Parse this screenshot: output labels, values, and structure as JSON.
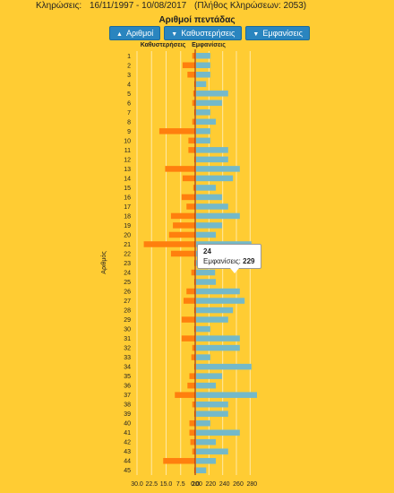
{
  "header": {
    "label": "Κληρώσεις:",
    "range": "16/11/1997 - 10/08/2017",
    "count_text": "(Πλήθος Κληρώσεων: 2053)"
  },
  "buttons": [
    {
      "label": "Αριθμοί",
      "arrow": "▲"
    },
    {
      "label": "Καθυστερήσεις",
      "arrow": "▼"
    },
    {
      "label": "Εμφανίσεις",
      "arrow": "▼"
    }
  ],
  "tooltip": {
    "number": "24",
    "label": "Εμφανίσεις:",
    "value": "229"
  },
  "colors": {
    "delay": "#FF7F0E",
    "appearances": "#74B9C9",
    "axis": "#8B1A1A",
    "grid": "#FFE9A6"
  },
  "chart_data": {
    "type": "bar",
    "title": "Αριθμοί πεντάδας",
    "ylabel": "Αριθμός",
    "series": [
      {
        "name": "Καθυστερήσεις",
        "values": [
          1.5,
          6.5,
          4.0,
          0.5,
          1.0,
          1.5,
          0.5,
          1.5,
          18.5,
          3.5,
          3.5,
          0.5,
          15.5,
          6.5,
          1.0,
          7.0,
          4.5,
          12.5,
          11.5,
          13.5,
          26.5,
          12.5,
          0.5,
          2.0,
          0.5,
          4.5,
          6.0,
          0.5,
          7.0,
          0.5,
          7.0,
          1.5,
          2.0,
          0.5,
          3.0,
          4.0,
          10.5,
          1.5,
          0.5,
          3.0,
          3.0,
          2.5,
          1.5,
          16.5,
          0.5
        ]
      },
      {
        "name": "Εμφανίσεις",
        "values": [
          222,
          222,
          222,
          216,
          248,
          239,
          222,
          230,
          222,
          222,
          248,
          248,
          265,
          255,
          230,
          239,
          248,
          265,
          239,
          230,
          282,
          222,
          248,
          229,
          230,
          265,
          272,
          255,
          248,
          222,
          265,
          265,
          222,
          282,
          239,
          230,
          290,
          248,
          248,
          222,
          265,
          230,
          248,
          230,
          216
        ]
      }
    ],
    "categories": [
      "1",
      "2",
      "3",
      "4",
      "5",
      "6",
      "7",
      "8",
      "9",
      "10",
      "11",
      "12",
      "13",
      "14",
      "15",
      "16",
      "17",
      "18",
      "19",
      "20",
      "21",
      "22",
      "23",
      "24",
      "25",
      "26",
      "27",
      "28",
      "29",
      "30",
      "31",
      "32",
      "33",
      "34",
      "35",
      "36",
      "37",
      "38",
      "39",
      "40",
      "41",
      "42",
      "43",
      "44",
      "45"
    ],
    "x_ticks_left": [
      "30.0",
      "22.5",
      "15.0",
      "7.5",
      "0.0"
    ],
    "x_ticks_right": [
      "200",
      "220",
      "240",
      "260",
      "280"
    ],
    "delay_range": [
      0,
      30
    ],
    "appearances_range": [
      200,
      290
    ]
  }
}
